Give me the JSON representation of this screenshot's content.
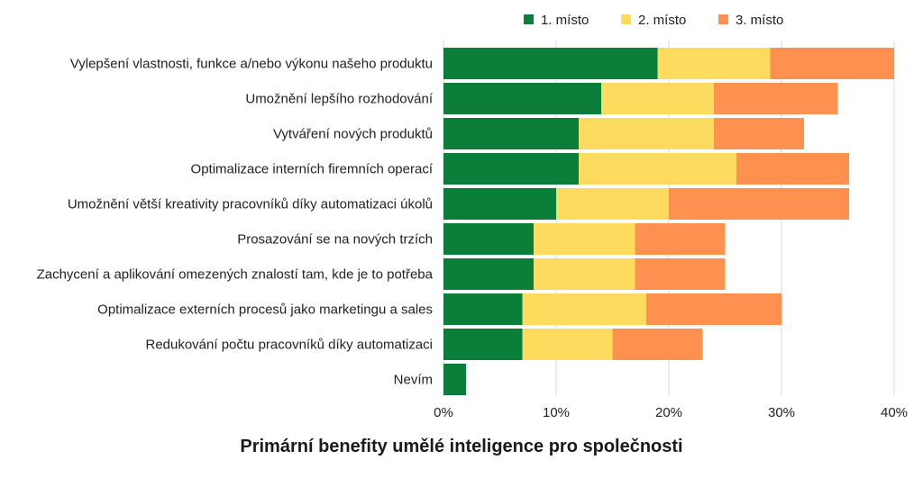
{
  "chart_data": {
    "type": "bar",
    "orientation": "horizontal",
    "stacked": true,
    "title": "Primární benefity umělé inteligence pro společnosti",
    "categories": [
      "Vylepšení vlastnosti, funkce a/nebo výkonu našeho produktu",
      "Umožnění lepšího rozhodování",
      "Vytváření nových produktů",
      "Optimalizace interních firemních operací",
      "Umožnění větší kreativity pracovníků díky automatizaci úkolů",
      "Prosazování se na nových trzích",
      "Zachycení a aplikování omezených znalostí tam, kde je to potřeba",
      "Optimalizace externích procesů jako marketingu a sales",
      "Redukování počtu pracovníků díky automatizaci",
      "Nevím"
    ],
    "series": [
      {
        "name": "1. místo",
        "color": "#0b7f3a",
        "values": [
          19,
          14,
          12,
          12,
          10,
          8,
          8,
          7,
          7,
          2
        ]
      },
      {
        "name": "2. místo",
        "color": "#fddb5f",
        "values": [
          10,
          10,
          12,
          14,
          10,
          9,
          9,
          11,
          8,
          0
        ]
      },
      {
        "name": "3. místo",
        "color": "#fe914f",
        "values": [
          11,
          11,
          8,
          10,
          16,
          8,
          8,
          12,
          8,
          0
        ]
      }
    ],
    "xlim": [
      0,
      40
    ],
    "xticks": [
      "0%",
      "10%",
      "20%",
      "30%",
      "40%"
    ],
    "xtick_values": [
      0,
      10,
      20,
      30,
      40
    ],
    "grid": true,
    "legend_position": "top"
  }
}
